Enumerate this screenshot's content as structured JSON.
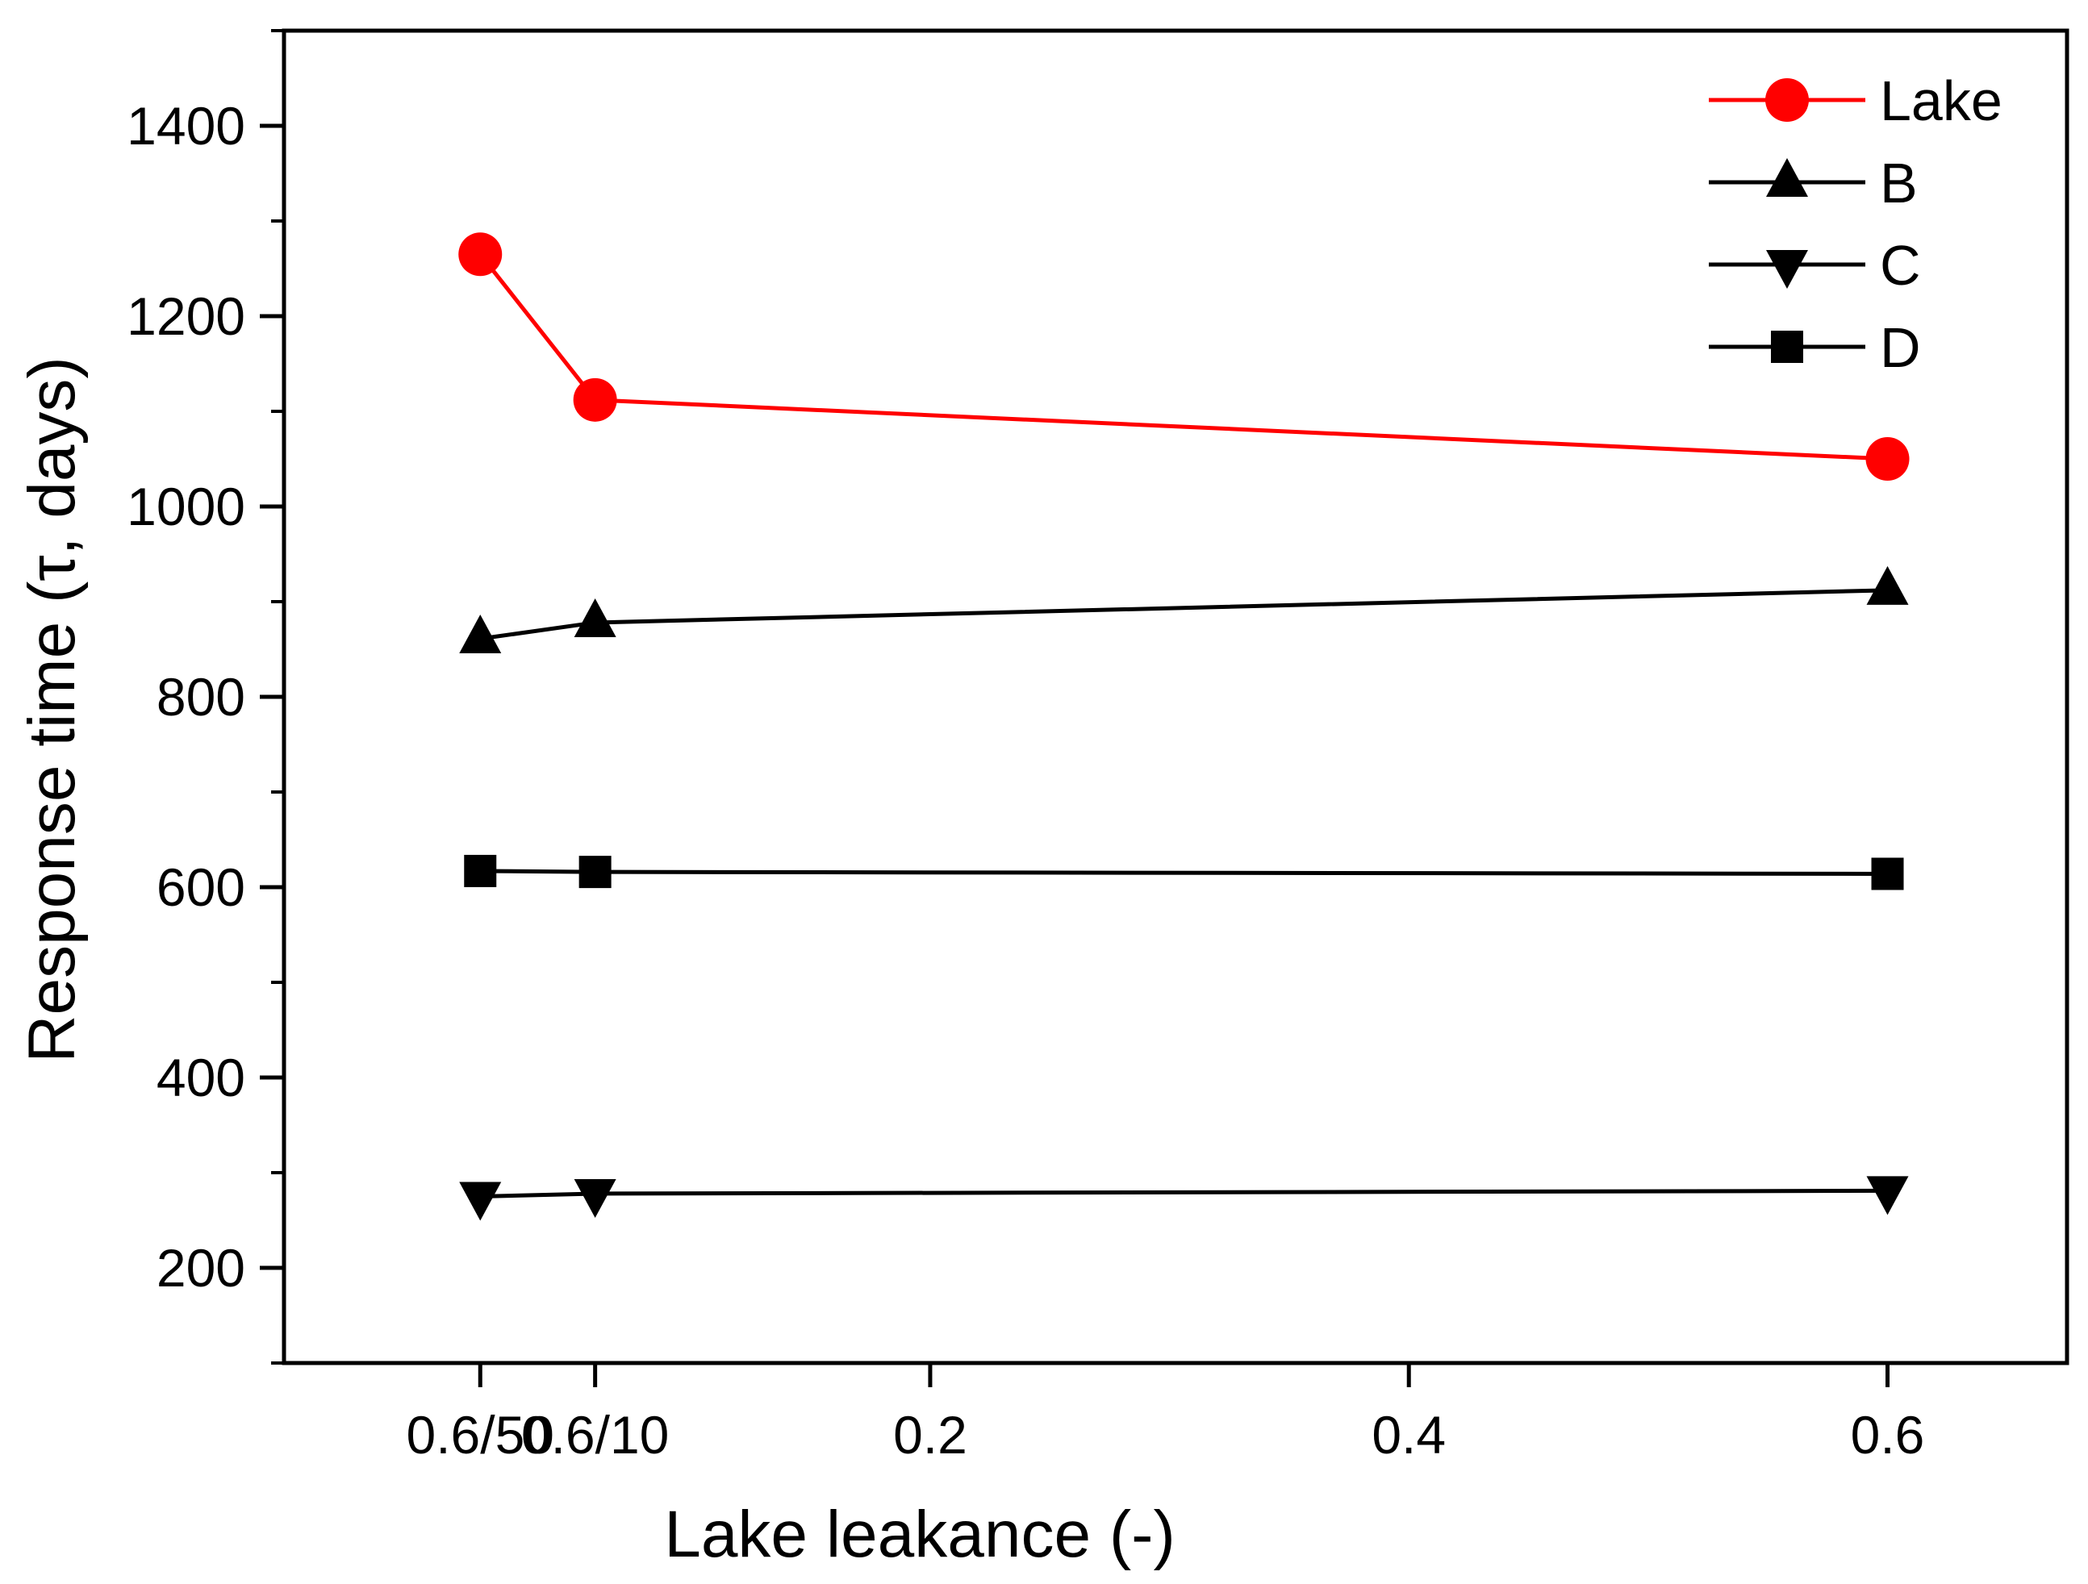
{
  "chart_data": {
    "type": "line",
    "xlabel": "Lake leakance (-)",
    "ylabel": "Response time (τ, days)",
    "xlim": [
      -0.07,
      0.675
    ],
    "ylim": [
      100,
      1500
    ],
    "x_ticks": [
      {
        "value": 0.012,
        "label": "0.6/50"
      },
      {
        "value": 0.06,
        "label": "0.6/10"
      },
      {
        "value": 0.2,
        "label": "0.2"
      },
      {
        "value": 0.4,
        "label": "0.4"
      },
      {
        "value": 0.6,
        "label": "0.6"
      }
    ],
    "y_ticks": [
      {
        "value": 200,
        "label": "200"
      },
      {
        "value": 400,
        "label": "400"
      },
      {
        "value": 600,
        "label": "600"
      },
      {
        "value": 800,
        "label": "800"
      },
      {
        "value": 1000,
        "label": "1000"
      },
      {
        "value": 1200,
        "label": "1200"
      },
      {
        "value": 1400,
        "label": "1400"
      }
    ],
    "y_minor_ticks": [
      100,
      300,
      500,
      700,
      900,
      1100,
      1300,
      1500
    ],
    "x": [
      0.012,
      0.06,
      0.6
    ],
    "series": [
      {
        "name": "Lake",
        "marker": "circle",
        "color": "#ff0000",
        "values": [
          1265,
          1112,
          1050
        ]
      },
      {
        "name": "B",
        "marker": "triangle-up",
        "color": "#000000",
        "values": [
          861,
          878,
          912
        ]
      },
      {
        "name": "C",
        "marker": "triangle-down",
        "color": "#000000",
        "values": [
          275,
          278,
          281
        ]
      },
      {
        "name": "D",
        "marker": "square",
        "color": "#000000",
        "values": [
          617,
          616,
          614
        ]
      }
    ],
    "legend_position": "top-right"
  }
}
